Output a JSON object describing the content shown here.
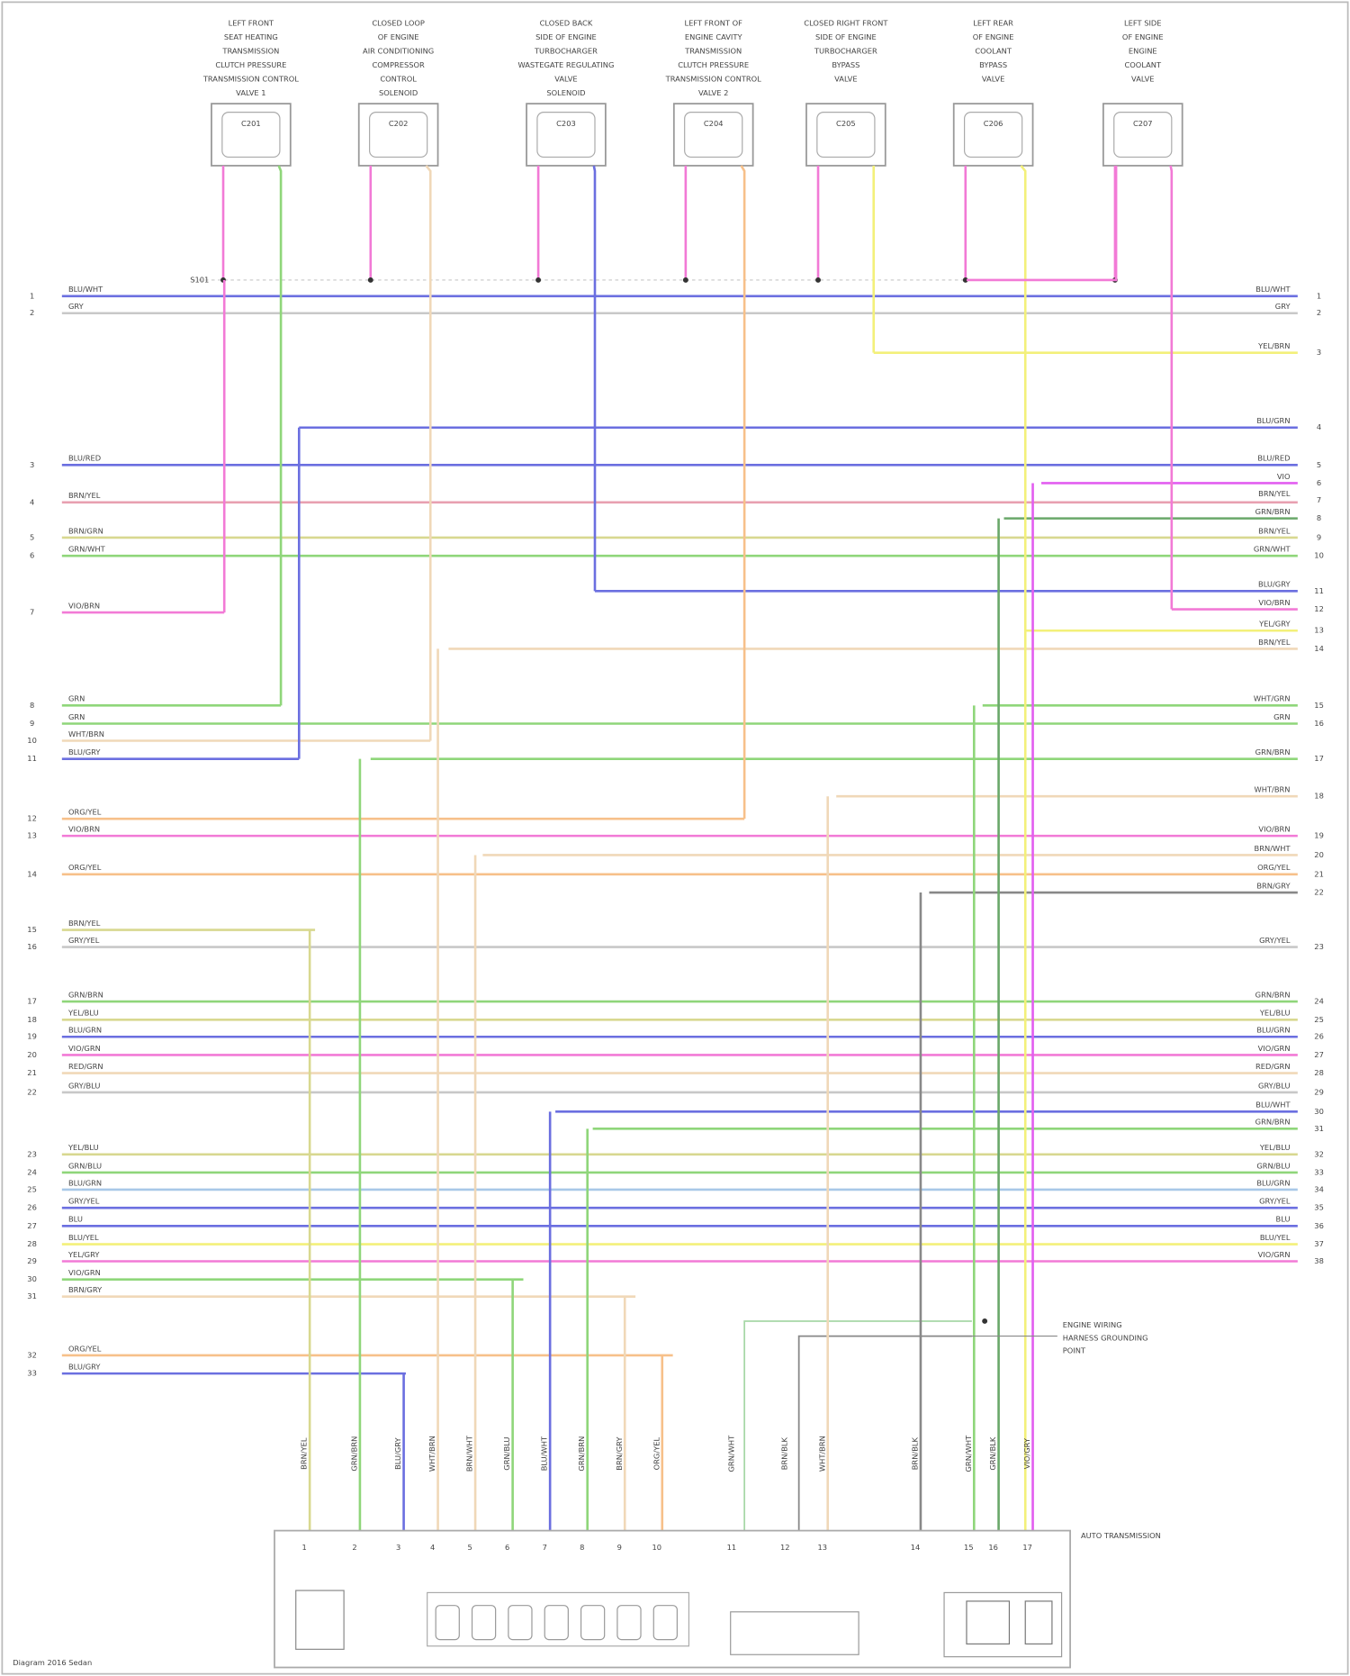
{
  "components": [
    {
      "label": [
        "LEFT FRONT",
        "SEAT HEATING",
        "TRANSMISSION",
        "CLUTCH PRESSURE",
        "TRANSMISSION CONTROL",
        "VALVE 1"
      ],
      "connector": "C201"
    },
    {
      "label": [
        "CLOSED LOOP",
        "OF ENGINE",
        "AIR CONDITIONING",
        "COMPRESSOR",
        "CONTROL",
        "SOLENOID"
      ],
      "connector": "C202"
    },
    {
      "label": [
        "CLOSED BACK",
        "SIDE OF ENGINE",
        "TURBOCHARGER",
        "WASTEGATE REGULATING",
        "VALVE",
        "SOLENOID"
      ],
      "connector": "C203"
    },
    {
      "label": [
        "LEFT FRONT OF",
        "ENGINE CAVITY",
        "TRANSMISSION",
        "CLUTCH PRESSURE",
        "TRANSMISSION CONTROL",
        "VALVE 2"
      ],
      "connector": "C204"
    },
    {
      "label": [
        "CLOSED RIGHT FRONT",
        "SIDE OF ENGINE",
        "TURBOCHARGER",
        "BYPASS",
        "VALVE"
      ],
      "connector": "C205"
    },
    {
      "label": [
        "LEFT REAR",
        "OF ENGINE",
        "COOLANT",
        "BYPASS",
        "VALVE"
      ],
      "connector": "C206"
    },
    {
      "label": [
        "LEFT SIDE",
        "OF ENGINE",
        "ENGINE",
        "COOLANT",
        "VALVE"
      ],
      "connector": "C207"
    }
  ],
  "splice": "S101",
  "left_connector": {
    "pins": [
      {
        "pin": "1",
        "wire": "BLU/WHT"
      },
      {
        "pin": "2",
        "wire": "GRY"
      },
      {
        "pin": "3",
        "wire": "BLU/RED"
      },
      {
        "pin": "4",
        "wire": "BRN/YEL"
      },
      {
        "pin": "5",
        "wire": "BRN/GRN"
      },
      {
        "pin": "6",
        "wire": "GRN/WHT"
      },
      {
        "pin": "7",
        "wire": "VIO/BRN"
      },
      {
        "pin": "8",
        "wire": "GRN"
      },
      {
        "pin": "9",
        "wire": "GRN"
      },
      {
        "pin": "10",
        "wire": "WHT/BRN"
      },
      {
        "pin": "11",
        "wire": "BLU/GRY"
      },
      {
        "pin": "12",
        "wire": "ORG/YEL"
      },
      {
        "pin": "13",
        "wire": "VIO/BRN"
      },
      {
        "pin": "14",
        "wire": "ORG/YEL"
      },
      {
        "pin": "15",
        "wire": "BRN/YEL"
      },
      {
        "pin": "16",
        "wire": "GRY/YEL"
      },
      {
        "pin": "17",
        "wire": "GRN/BRN"
      },
      {
        "pin": "18",
        "wire": "YEL/BLU"
      },
      {
        "pin": "19",
        "wire": "BLU/GRN"
      },
      {
        "pin": "20",
        "wire": "VIO/GRN"
      },
      {
        "pin": "21",
        "wire": "RED/GRN"
      },
      {
        "pin": "22",
        "wire": "GRY/BLU"
      },
      {
        "pin": "23",
        "wire": "YEL/BLU"
      },
      {
        "pin": "24",
        "wire": "GRN/BLU"
      },
      {
        "pin": "25",
        "wire": "BLU/GRN"
      },
      {
        "pin": "26",
        "wire": "GRY/YEL"
      },
      {
        "pin": "27",
        "wire": "BLU"
      },
      {
        "pin": "28",
        "wire": "BLU/YEL"
      },
      {
        "pin": "29",
        "wire": "YEL/GRY"
      },
      {
        "pin": "30",
        "wire": "VIO/GRN"
      },
      {
        "pin": "31",
        "wire": "BRN/GRY"
      },
      {
        "pin": "32",
        "wire": "ORG/YEL"
      },
      {
        "pin": "33",
        "wire": "BLU/GRY"
      }
    ]
  },
  "right_connector": {
    "pins": [
      {
        "pin": "1",
        "wire": "BLU/WHT"
      },
      {
        "pin": "2",
        "wire": "GRY"
      },
      {
        "pin": "3",
        "wire": "YEL/BRN"
      },
      {
        "pin": "4",
        "wire": "BLU/GRN"
      },
      {
        "pin": "5",
        "wire": "BLU/RED"
      },
      {
        "pin": "6",
        "wire": "VIO"
      },
      {
        "pin": "7",
        "wire": "BRN/YEL"
      },
      {
        "pin": "8",
        "wire": "GRN/BRN"
      },
      {
        "pin": "9",
        "wire": "BRN/YEL"
      },
      {
        "pin": "10",
        "wire": "GRN/WHT"
      },
      {
        "pin": "11",
        "wire": "BLU/GRY"
      },
      {
        "pin": "12",
        "wire": "VIO/BRN"
      },
      {
        "pin": "13",
        "wire": "YEL/GRY"
      },
      {
        "pin": "14",
        "wire": "BRN/YEL"
      },
      {
        "pin": "15",
        "wire": "WHT/GRN"
      },
      {
        "pin": "16",
        "wire": "GRN"
      },
      {
        "pin": "17",
        "wire": "GRN/BRN"
      },
      {
        "pin": "18",
        "wire": "WHT/BRN"
      },
      {
        "pin": "19",
        "wire": "VIO/BRN"
      },
      {
        "pin": "20",
        "wire": "BRN/WHT"
      },
      {
        "pin": "21",
        "wire": "ORG/YEL"
      },
      {
        "pin": "22",
        "wire": "BRN/GRY"
      },
      {
        "pin": "23",
        "wire": "GRY/YEL"
      },
      {
        "pin": "24",
        "wire": "GRN/BRN"
      },
      {
        "pin": "25",
        "wire": "YEL/BLU"
      },
      {
        "pin": "26",
        "wire": "BLU/GRN"
      },
      {
        "pin": "27",
        "wire": "VIO/GRN"
      },
      {
        "pin": "28",
        "wire": "RED/GRN"
      },
      {
        "pin": "29",
        "wire": "GRY/BLU"
      },
      {
        "pin": "30",
        "wire": "BLU/WHT"
      },
      {
        "pin": "31",
        "wire": "GRN/BRN"
      },
      {
        "pin": "32",
        "wire": "YEL/BLU"
      },
      {
        "pin": "33",
        "wire": "GRN/BLU"
      },
      {
        "pin": "34",
        "wire": "BLU/GRN"
      },
      {
        "pin": "35",
        "wire": "GRY/YEL"
      },
      {
        "pin": "36",
        "wire": "BLU"
      },
      {
        "pin": "37",
        "wire": "BLU/YEL"
      },
      {
        "pin": "38",
        "wire": "VIO/GRN"
      }
    ]
  },
  "ground_label": [
    "ENGINE WIRING",
    "HARNESS GROUNDING",
    "POINT"
  ],
  "bottom_connector": {
    "label": "AUTO TRANSMISSION",
    "pins": [
      {
        "pin": "1",
        "wire": "BRN/YEL"
      },
      {
        "pin": "2",
        "wire": "GRN/BRN"
      },
      {
        "pin": "3",
        "wire": "BLU/GRY"
      },
      {
        "pin": "4",
        "wire": "WHT/BRN"
      },
      {
        "pin": "5",
        "wire": "BRN/WHT"
      },
      {
        "pin": "6",
        "wire": "GRN/BLU"
      },
      {
        "pin": "7",
        "wire": "BLU/WHT"
      },
      {
        "pin": "8",
        "wire": "GRN/BRN"
      },
      {
        "pin": "9",
        "wire": "BRN/GRY"
      },
      {
        "pin": "10",
        "wire": "ORG/YEL"
      },
      {
        "pin": "11",
        "wire": "GRN/WHT"
      },
      {
        "pin": "12",
        "wire": "BRN/BLK"
      },
      {
        "pin": "13",
        "wire": "WHT/BRN"
      },
      {
        "pin": "14",
        "wire": "BRN/BLK"
      },
      {
        "pin": "15",
        "wire": "GRN/WHT"
      },
      {
        "pin": "16",
        "wire": "GRN/BLK"
      },
      {
        "pin": "17",
        "wire": "VIO/GRY"
      }
    ]
  },
  "footer": "Diagram 2016 Sedan"
}
